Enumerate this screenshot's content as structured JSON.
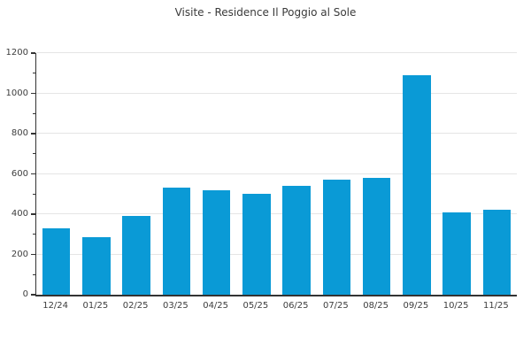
{
  "colors": {
    "bar": "#0a9ad6",
    "grid": "#e5e5e5",
    "axis": "#333333",
    "text": "#3d3d3d"
  },
  "chart_data": {
    "type": "bar",
    "title": "Visite - Residence Il Poggio al Sole",
    "categories": [
      "12/24",
      "01/25",
      "02/25",
      "03/25",
      "04/25",
      "05/25",
      "06/25",
      "07/25",
      "08/25",
      "09/25",
      "10/25",
      "11/25"
    ],
    "values": [
      330,
      285,
      390,
      530,
      520,
      500,
      540,
      570,
      580,
      1090,
      410,
      420
    ],
    "xlabel": "",
    "ylabel": "",
    "ylim": [
      0,
      1200
    ],
    "yticks": [
      0,
      200,
      400,
      600,
      800,
      1000,
      1200
    ],
    "minor_tick_interval": 100,
    "grid": "horizontal-major-only",
    "legend": "none",
    "bar_color": "#0a9ad6"
  }
}
